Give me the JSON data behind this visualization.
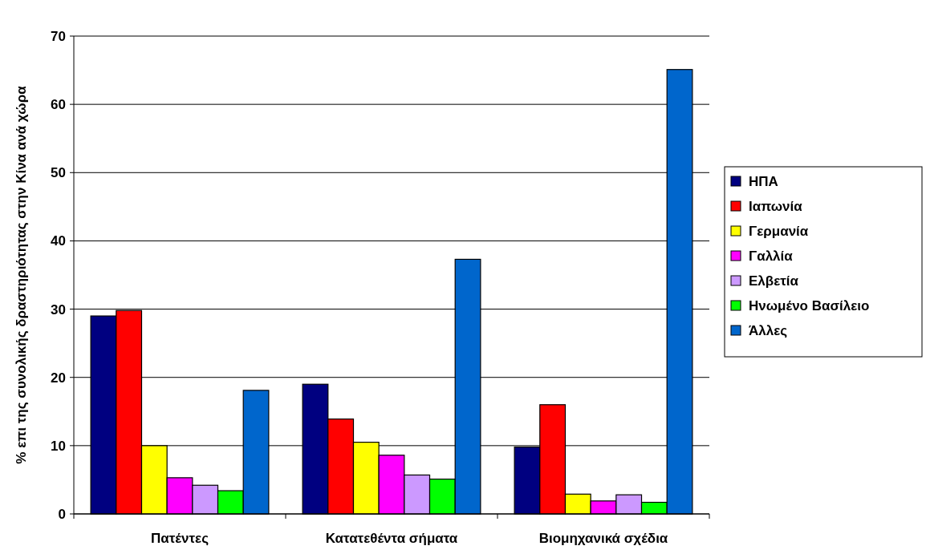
{
  "chart_data": {
    "type": "bar",
    "ylabel": "% επι της συνολικής δραστηριότητας στην Κίνα ανά χώρα",
    "categories": [
      "Πατέντες",
      "Κατατεθέντα σήματα",
      "Βιομηχανικά σχέδια"
    ],
    "series": [
      {
        "name": "ΗΠΑ",
        "color": "#000080",
        "values": [
          29.0,
          19.0,
          9.8
        ]
      },
      {
        "name": "Ιαπωνία",
        "color": "#ff0000",
        "values": [
          29.8,
          13.9,
          16.0
        ]
      },
      {
        "name": "Γερμανία",
        "color": "#ffff00",
        "values": [
          10.0,
          10.5,
          2.9
        ]
      },
      {
        "name": "Γαλλία",
        "color": "#ff00ff",
        "values": [
          5.3,
          8.6,
          1.9
        ]
      },
      {
        "name": "Ελβετία",
        "color": "#cc99ff",
        "values": [
          4.2,
          5.7,
          2.8
        ]
      },
      {
        "name": "Ηνωμένο Βασίλειο",
        "color": "#00ff00",
        "values": [
          3.4,
          5.1,
          1.7
        ]
      },
      {
        "name": "Άλλες",
        "color": "#0066cc",
        "values": [
          18.1,
          37.3,
          65.1
        ]
      }
    ],
    "ylim": [
      0,
      70
    ],
    "yticks": [
      0,
      10,
      20,
      30,
      40,
      50,
      60,
      70
    ],
    "grid": "y",
    "legend": "right"
  }
}
